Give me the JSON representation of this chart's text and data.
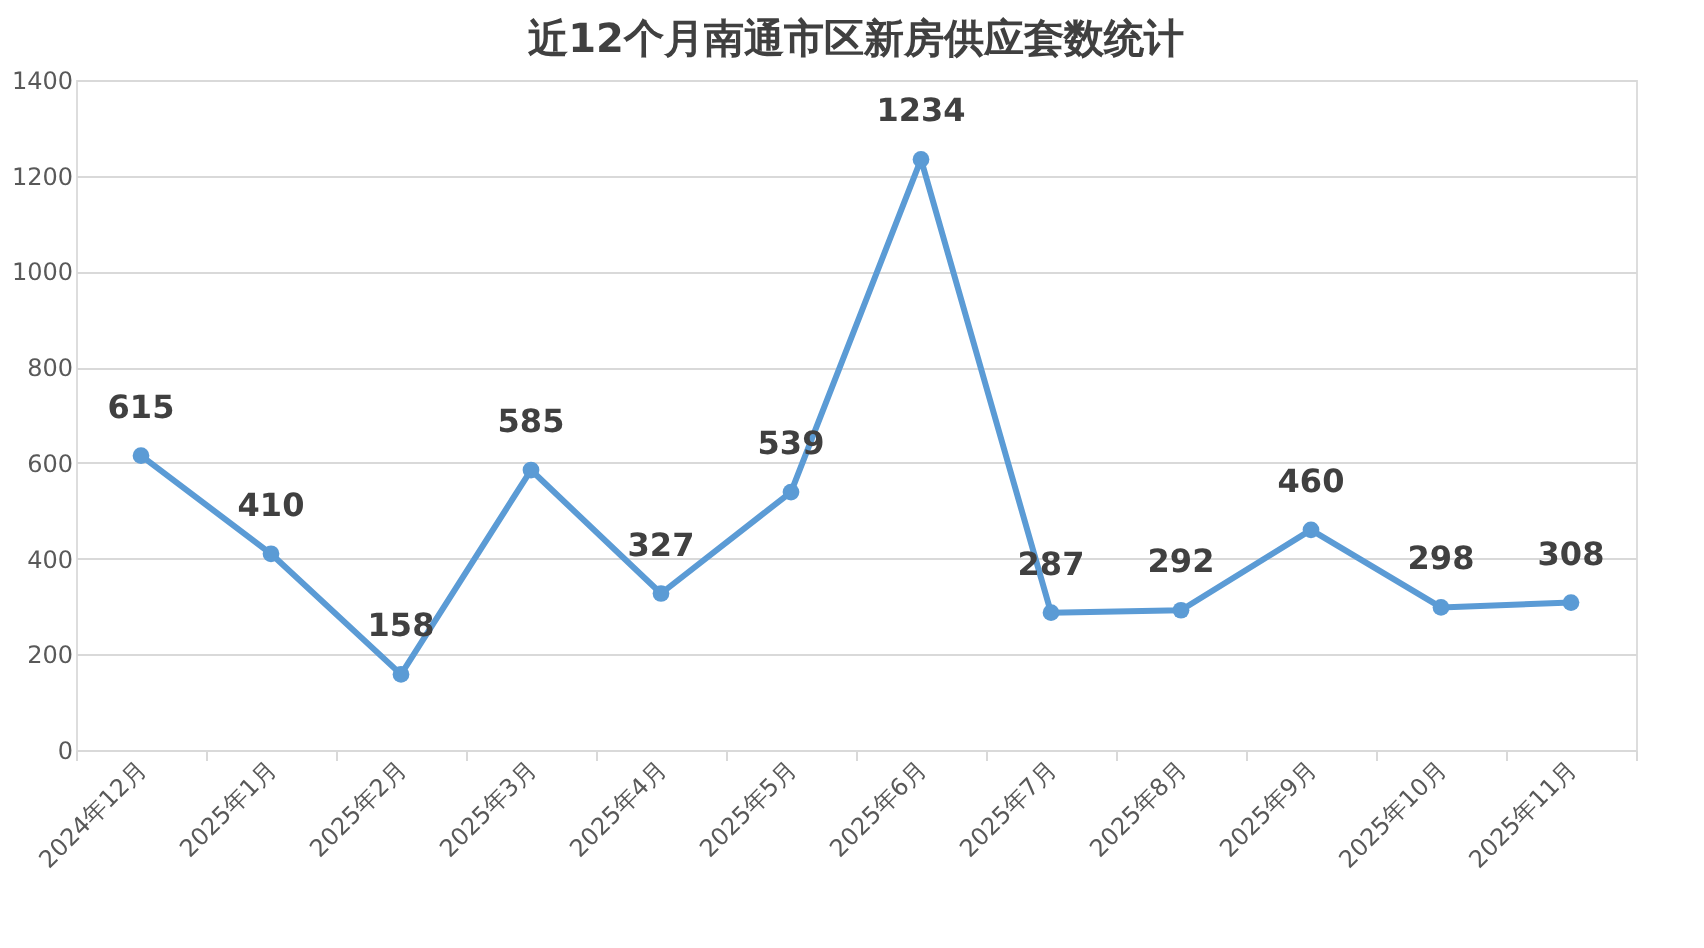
{
  "chart_data": {
    "type": "line",
    "title": "近12个月南通市区新房供应套数统计",
    "categories": [
      "2024年12月",
      "2025年1月",
      "2025年2月",
      "2025年3月",
      "2025年4月",
      "2025年5月",
      "2025年6月",
      "2025年7月",
      "2025年8月",
      "2025年9月",
      "2025年10月",
      "2025年11月"
    ],
    "series": [
      {
        "color": "#5b9bd5",
        "values": [
          615,
          410,
          158,
          585,
          327,
          539,
          1234,
          287,
          292,
          460,
          298,
          308
        ]
      }
    ],
    "ylim": [
      0,
      1400
    ],
    "yticks": [
      0,
      200,
      400,
      600,
      800,
      1000,
      1200,
      1400
    ],
    "grid": "y",
    "marker": "circle",
    "line_style": "solid",
    "data_labels": true
  }
}
